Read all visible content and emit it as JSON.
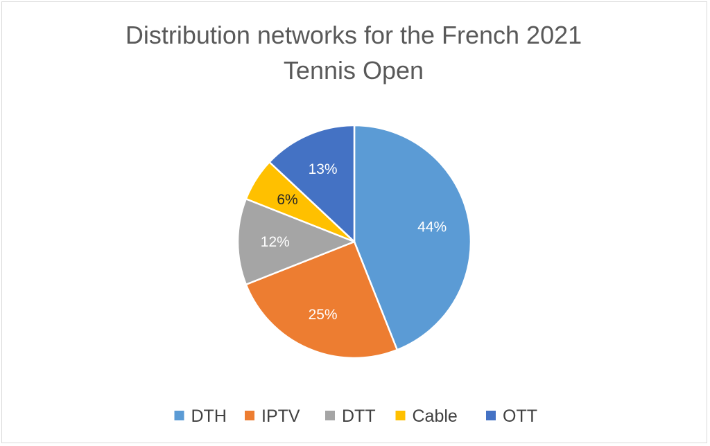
{
  "chart_data": {
    "type": "pie",
    "title_lines": [
      "Distribution networks for the French 2021",
      "Tennis Open"
    ],
    "slices": [
      {
        "name": "DTH",
        "value": 44,
        "label": "44%",
        "color": "#5b9bd5",
        "label_color": "#ffffff"
      },
      {
        "name": "IPTV",
        "value": 25,
        "label": "25%",
        "color": "#ed7d31",
        "label_color": "#ffffff"
      },
      {
        "name": "DTT",
        "value": 12,
        "label": "12%",
        "color": "#a5a5a5",
        "label_color": "#ffffff"
      },
      {
        "name": "Cable",
        "value": 6,
        "label": "6%",
        "color": "#ffc000",
        "label_color": "#262626"
      },
      {
        "name": "OTT",
        "value": 13,
        "label": "13%",
        "color": "#4472c4",
        "label_color": "#ffffff"
      }
    ],
    "start": "12 o'clock",
    "direction": "clockwise",
    "legend_position": "bottom"
  }
}
